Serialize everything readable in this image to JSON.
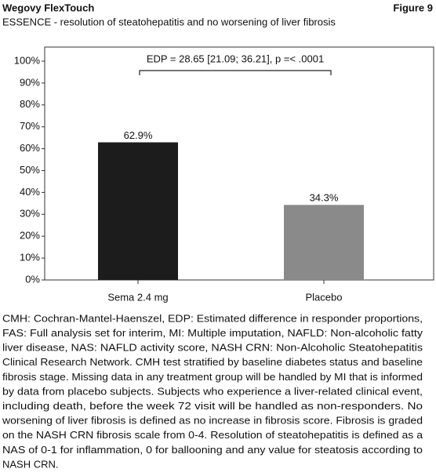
{
  "header": {
    "title": "Wegovy FlexTouch",
    "figure": "Figure 9"
  },
  "chart_data": {
    "type": "bar",
    "title": "ESSENCE - resolution of steatohepatitis and no worsening of liver fibrosis",
    "annotation": "EDP = 28.65 [21.09; 36.21], p =< .0001",
    "categories": [
      "Sema 2.4 mg",
      "Placebo"
    ],
    "values": [
      62.9,
      34.3
    ],
    "value_labels": [
      "62.9%",
      "34.3%"
    ],
    "colors": [
      "#1c1c1c",
      "#8a8a8a"
    ],
    "ylim": [
      0,
      100
    ],
    "yticks": [
      {
        "value": 0,
        "label": "0%"
      },
      {
        "value": 10,
        "label": "10%"
      },
      {
        "value": 20,
        "label": "20%"
      },
      {
        "value": 30,
        "label": "30%"
      },
      {
        "value": 40,
        "label": "40%"
      },
      {
        "value": 50,
        "label": "50%"
      },
      {
        "value": 60,
        "label": "60%"
      },
      {
        "value": 70,
        "label": "70%"
      },
      {
        "value": 80,
        "label": "80%"
      },
      {
        "value": 90,
        "label": "90%"
      },
      {
        "value": 100,
        "label": "100%"
      }
    ],
    "grid": false
  },
  "footnote": [
    "CMH: Cochran-Mantel-Haenszel, EDP: Estimated difference in responder proportions,",
    "FAS: Full analysis set for interim, MI: Multiple imputation, NAFLD: Non-alcoholic fatty",
    "liver disease, NAS: NAFLD activity score, NASH CRN: Non-Alcoholic Steatohepatitis",
    "Clinical Research Network. CMH test stratified by baseline diabetes status and baseline",
    "fibrosis stage. Missing data in any treatment group will be handled by MI that is informed",
    "by data from placebo subjects. Subjects who experience a liver-related clinical event,",
    "including death, before the week 72 visit will be handled as non-responders. No",
    "worsening of liver fibrosis is defined as no increase in fibrosis score. Fibrosis is graded",
    "on the NASH CRN fibrosis scale from 0-4. Resolution of steatohepatitis is defined as a",
    "NAS of 0-1 for inflammation, 0 for ballooning and any value for steatosis according to",
    "NASH CRN."
  ]
}
